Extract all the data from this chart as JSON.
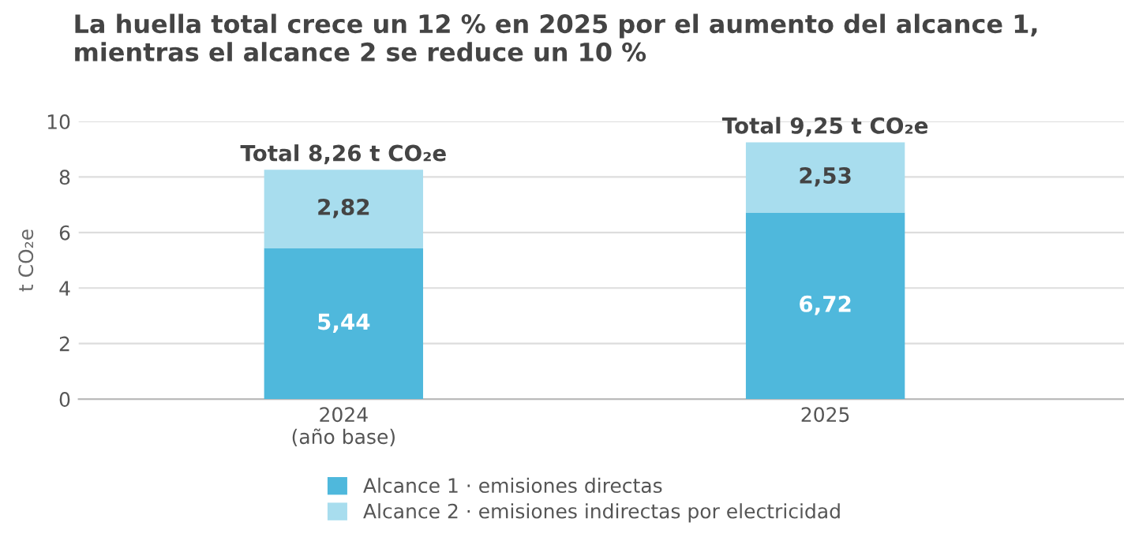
{
  "chart_data": {
    "type": "bar",
    "title": "La huella total crece un 12 % en 2025 por el aumento del alcance 1,\nmientras el alcance 2 se reduce un 10 %",
    "ylabel": "t CO₂e",
    "categories": [
      "2024\n(año base)",
      "2025"
    ],
    "stacked": true,
    "series": [
      {
        "name": "Alcance 1 · emisiones directas",
        "color": "#4fb8dc",
        "values": [
          5.44,
          6.72
        ],
        "value_labels": [
          "5,44",
          "6,72"
        ]
      },
      {
        "name": "Alcance 2 · emisiones indirectas por electricidad",
        "color": "#a8ddee",
        "values": [
          2.82,
          2.53
        ],
        "value_labels": [
          "2,82",
          "2,53"
        ]
      }
    ],
    "totals": [
      "Total 8,26 t CO₂e",
      "Total 9,25 t CO₂e"
    ],
    "ylim": [
      0,
      10
    ],
    "yticks": [
      0,
      2,
      4,
      6,
      8,
      10
    ],
    "grid": "y",
    "legend": "bottom"
  }
}
